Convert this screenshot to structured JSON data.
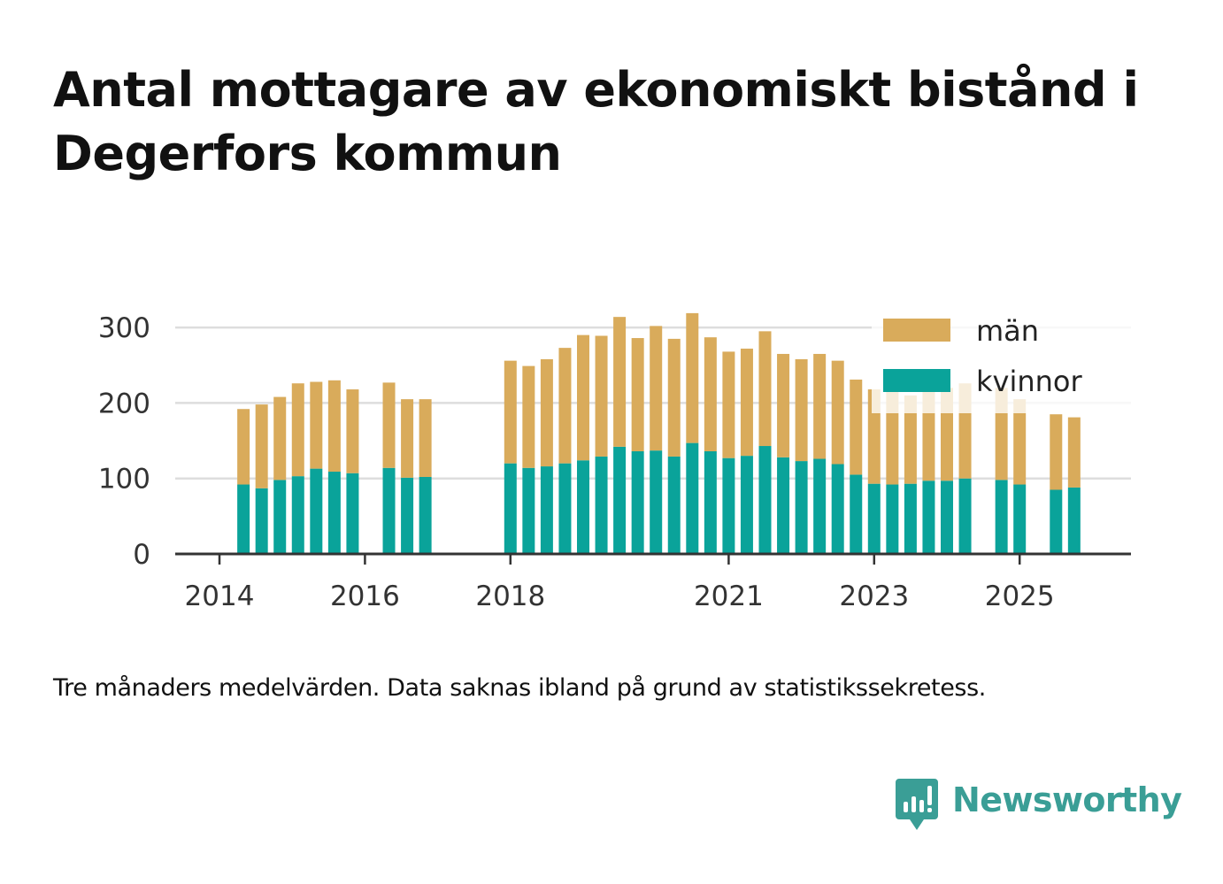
{
  "title": "Antal mottagare av ekonomiskt bistånd i Degerfors kommun",
  "footnote": "Tre månaders medelvärden. Data saknas ibland på grund av statistikssekretess.",
  "brand": {
    "name": "Newsworthy",
    "icon": "newsworthy-logo-icon",
    "color": "#3a9e96"
  },
  "colors": {
    "men": "#d9ab5b",
    "women": "#0aa39a",
    "grid": "#dddddd",
    "axis": "#333333"
  },
  "chart_data": {
    "type": "bar",
    "stacked": true,
    "title": "Antal mottagare av ekonomiskt bistånd i Degerfors kommun",
    "xlabel": "",
    "ylabel": "",
    "ylim": [
      0,
      350
    ],
    "yticks": [
      0,
      100,
      200,
      300
    ],
    "xticks": [
      {
        "label": "2014",
        "t": 2014.0
      },
      {
        "label": "2016",
        "t": 2016.0
      },
      {
        "label": "2018",
        "t": 2018.0
      },
      {
        "label": "2021",
        "t": 2021.0
      },
      {
        "label": "2023",
        "t": 2023.0
      },
      {
        "label": "2025",
        "t": 2025.0
      }
    ],
    "legend": {
      "placement": "top-right",
      "entries": [
        "män",
        "kvinnor"
      ]
    },
    "periods": [
      "2014 Q2",
      "2014 Q3",
      "2014 Q4",
      "2015 Q1",
      "2015 Q2",
      "2015 Q3",
      "2015 Q4",
      "2016 Q2",
      "2016 Q3",
      "2016 Q4",
      "2018 Q1",
      "2018 Q2",
      "2018 Q3",
      "2018 Q4",
      "2019 Q1",
      "2019 Q2",
      "2019 Q3",
      "2019 Q4",
      "2020 Q1",
      "2020 Q2",
      "2020 Q3",
      "2020 Q4",
      "2021 Q1",
      "2021 Q2",
      "2021 Q3",
      "2021 Q4",
      "2022 Q1",
      "2022 Q2",
      "2022 Q3",
      "2022 Q4",
      "2023 Q1",
      "2023 Q2",
      "2023 Q3",
      "2023 Q4",
      "2024 Q1",
      "2024 Q2",
      "2024 Q4",
      "2025 Q1",
      "2025 Q3",
      "2025 Q4"
    ],
    "t": [
      2014.33,
      2014.58,
      2014.83,
      2015.08,
      2015.33,
      2015.58,
      2015.83,
      2016.33,
      2016.58,
      2016.83,
      2018.0,
      2018.25,
      2018.5,
      2018.75,
      2019.0,
      2019.25,
      2019.5,
      2019.75,
      2020.0,
      2020.25,
      2020.5,
      2020.75,
      2021.0,
      2021.25,
      2021.5,
      2021.75,
      2022.0,
      2022.25,
      2022.5,
      2022.75,
      2023.0,
      2023.25,
      2023.5,
      2023.75,
      2024.0,
      2024.25,
      2024.75,
      2025.0,
      2025.5,
      2025.75
    ],
    "series": [
      {
        "name": "kvinnor",
        "color": "#0aa39a",
        "values": [
          92,
          87,
          98,
          103,
          113,
          109,
          107,
          114,
          101,
          102,
          120,
          114,
          116,
          120,
          124,
          129,
          142,
          136,
          137,
          129,
          147,
          136,
          127,
          130,
          143,
          128,
          123,
          126,
          119,
          105,
          93,
          92,
          93,
          97,
          97,
          100,
          98,
          92,
          85,
          88
        ]
      },
      {
        "name": "män",
        "color": "#d9ab5b",
        "values": [
          100,
          111,
          110,
          123,
          115,
          121,
          111,
          113,
          104,
          103,
          136,
          135,
          142,
          153,
          166,
          160,
          172,
          150,
          165,
          156,
          172,
          151,
          141,
          142,
          152,
          137,
          135,
          139,
          137,
          126,
          125,
          125,
          117,
          123,
          123,
          126,
          122,
          113,
          100,
          93
        ]
      }
    ]
  }
}
